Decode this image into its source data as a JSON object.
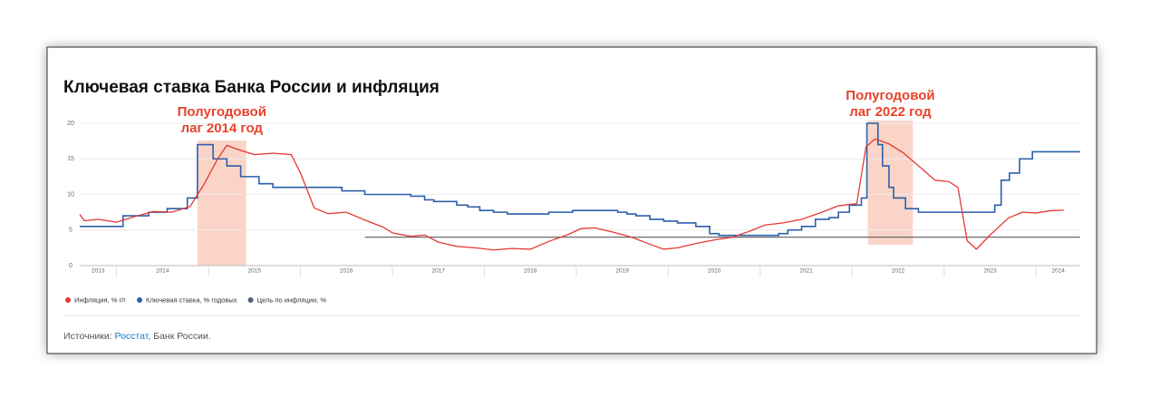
{
  "chart_data": {
    "type": "line",
    "title": "Ключевая ставка Банка России и инфляция",
    "xlim": [
      2013.6,
      2024.48
    ],
    "xticks": [
      2013,
      2014,
      2015,
      2016,
      2017,
      2018,
      2019,
      2020,
      2021,
      2022,
      2023,
      2024
    ],
    "ylim": [
      0,
      20
    ],
    "yticks": [
      0,
      5,
      10,
      15,
      20
    ],
    "grid": true,
    "series": [
      {
        "name": "Инфляция, % г/г",
        "color": "#e53935",
        "step": false,
        "x": [
          2013.6,
          2013.65,
          2013.8,
          2014.0,
          2014.2,
          2014.4,
          2014.6,
          2014.8,
          2014.95,
          2015.1,
          2015.2,
          2015.3,
          2015.5,
          2015.7,
          2015.9,
          2016.0,
          2016.15,
          2016.3,
          2016.5,
          2016.7,
          2016.9,
          2017.0,
          2017.2,
          2017.35,
          2017.5,
          2017.7,
          2017.9,
          2018.1,
          2018.3,
          2018.5,
          2018.7,
          2018.9,
          2019.05,
          2019.2,
          2019.4,
          2019.6,
          2019.8,
          2019.95,
          2020.1,
          2020.3,
          2020.5,
          2020.7,
          2020.9,
          2021.05,
          2021.25,
          2021.45,
          2021.65,
          2021.85,
          2022.05,
          2022.15,
          2022.25,
          2022.4,
          2022.55,
          2022.75,
          2022.9,
          2023.05,
          2023.15,
          2023.25,
          2023.35,
          2023.5,
          2023.7,
          2023.85,
          2024.0,
          2024.15,
          2024.3
        ],
        "values": [
          7.2,
          6.3,
          6.5,
          6.1,
          6.9,
          7.6,
          7.5,
          8.3,
          11.4,
          15.0,
          16.9,
          16.4,
          15.6,
          15.8,
          15.6,
          13.0,
          8.1,
          7.3,
          7.5,
          6.4,
          5.4,
          4.6,
          4.1,
          4.3,
          3.3,
          2.7,
          2.5,
          2.2,
          2.4,
          2.3,
          3.4,
          4.3,
          5.2,
          5.3,
          4.7,
          4.0,
          3.0,
          2.3,
          2.5,
          3.1,
          3.6,
          4.0,
          4.9,
          5.7,
          6.0,
          6.5,
          7.4,
          8.4,
          8.7,
          16.7,
          17.8,
          17.1,
          15.9,
          13.7,
          12.0,
          11.8,
          11.0,
          3.5,
          2.3,
          4.3,
          6.7,
          7.5,
          7.4,
          7.7,
          7.8
        ]
      },
      {
        "name": "Ключевая ставка, % годовых",
        "color": "#2b5fab",
        "step": true,
        "x": [
          2013.6,
          2014.07,
          2014.35,
          2014.55,
          2014.77,
          2014.88,
          2015.05,
          2015.2,
          2015.35,
          2015.55,
          2015.7,
          2016.45,
          2016.7,
          2017.2,
          2017.35,
          2017.45,
          2017.7,
          2017.82,
          2017.95,
          2018.1,
          2018.25,
          2018.7,
          2018.96,
          2019.45,
          2019.55,
          2019.65,
          2019.8,
          2019.95,
          2020.1,
          2020.3,
          2020.45,
          2020.55,
          2021.2,
          2021.3,
          2021.45,
          2021.6,
          2021.75,
          2021.85,
          2021.97,
          2022.1,
          2022.16,
          2022.28,
          2022.33,
          2022.4,
          2022.45,
          2022.58,
          2022.72,
          2023.55,
          2023.62,
          2023.71,
          2023.82,
          2023.96,
          2024.48
        ],
        "values": [
          5.5,
          7,
          7.5,
          8,
          9.5,
          17,
          15,
          14,
          12.5,
          11.5,
          11,
          10.5,
          10,
          9.75,
          9.25,
          9,
          8.5,
          8.25,
          7.75,
          7.5,
          7.25,
          7.5,
          7.75,
          7.5,
          7.25,
          7,
          6.5,
          6.25,
          6,
          5.5,
          4.5,
          4.25,
          4.5,
          5,
          5.5,
          6.5,
          6.75,
          7.5,
          8.5,
          9.5,
          20,
          17,
          14,
          11,
          9.5,
          8,
          7.5,
          8.5,
          12,
          13,
          15,
          16,
          16
        ]
      },
      {
        "name": "Цель по инфляции, %",
        "color": "#6b6b6b",
        "legend_color": "#56607a",
        "step": false,
        "x": [
          2016.7,
          2024.48
        ],
        "values": [
          4,
          4
        ]
      }
    ],
    "annotations": [
      {
        "lines": [
          "Полугодовой",
          "лаг 2014 год"
        ],
        "x": [
          2014.88,
          2015.41
        ]
      },
      {
        "lines": [
          "Полугодовой",
          "лаг 2022 год"
        ],
        "x": [
          2022.17,
          2022.66
        ]
      }
    ],
    "source": [
      "Источники: ",
      "Росстат",
      ", Банк России."
    ]
  }
}
